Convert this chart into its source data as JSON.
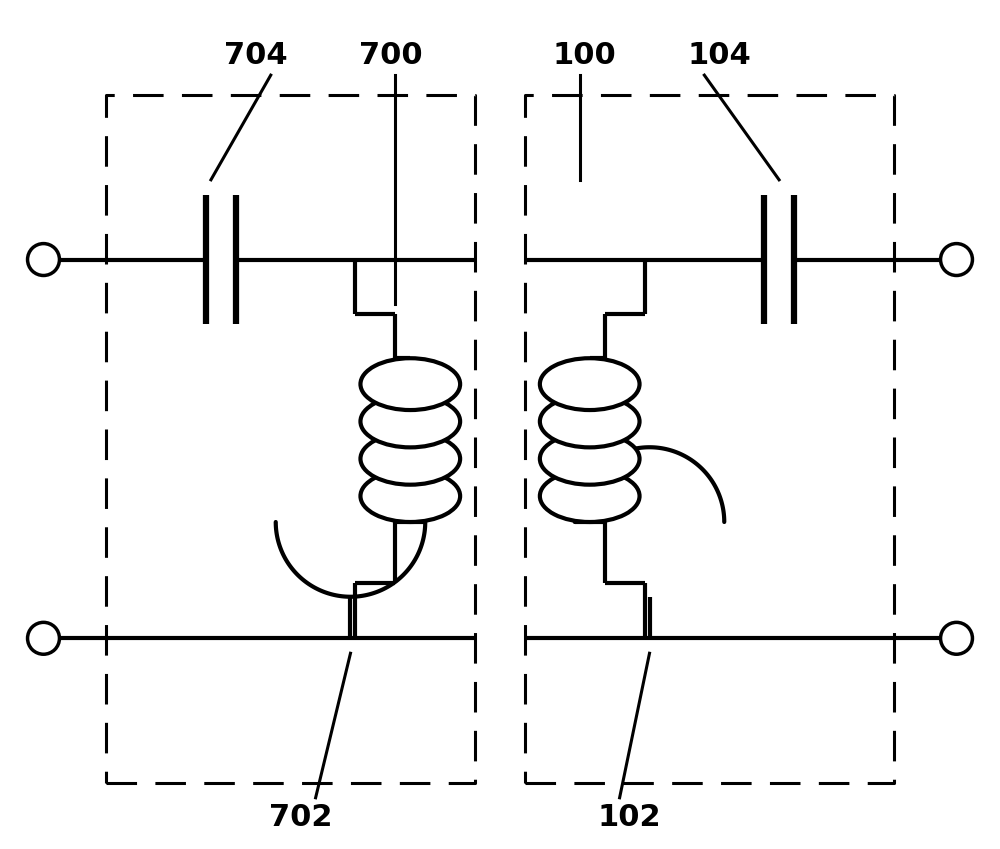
{
  "bg_color": "#ffffff",
  "line_color": "#000000",
  "lw": 3.0,
  "cap_lw": 4.5,
  "label_fontsize": 22,
  "fig_width": 10.0,
  "fig_height": 8.49
}
